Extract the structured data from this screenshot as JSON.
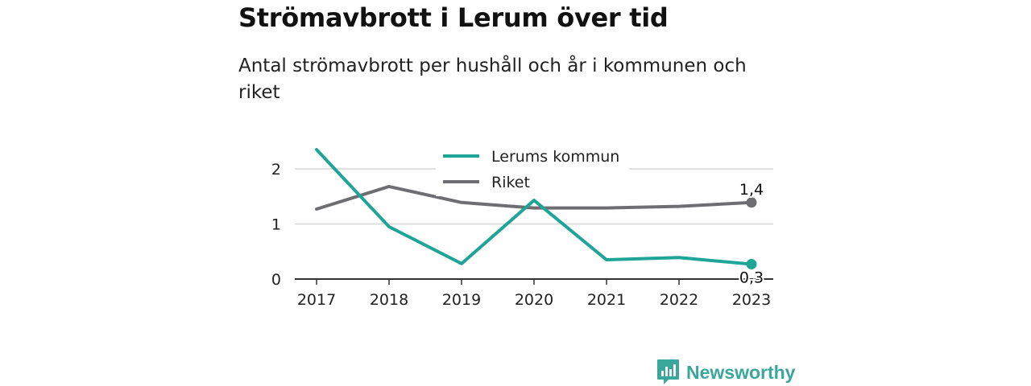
{
  "title": "Strömavbrott i Lerum över tid",
  "subtitle": "Antal strömavbrott per hushåll och år i kommunen och riket",
  "logo": {
    "text": "Newsworthy",
    "icon": "bar-chart-speech-bubble-icon",
    "color": "#3aa79c"
  },
  "chart_data": {
    "type": "line",
    "x": [
      "2017",
      "2018",
      "2019",
      "2020",
      "2021",
      "2022",
      "2023"
    ],
    "ylim": [
      0,
      2.5
    ],
    "yticks": [
      "0",
      "1",
      "2"
    ],
    "grid": true,
    "legend_position": "top",
    "series": [
      {
        "name": "Lerums kommun",
        "color": "#1fa597",
        "values": [
          2.35,
          0.95,
          0.28,
          1.43,
          0.35,
          0.39,
          0.27
        ],
        "end_label": "0,3"
      },
      {
        "name": "Riket",
        "color": "#6e6d72",
        "values": [
          1.27,
          1.68,
          1.39,
          1.29,
          1.29,
          1.32,
          1.39
        ],
        "end_label": "1,4"
      }
    ]
  }
}
